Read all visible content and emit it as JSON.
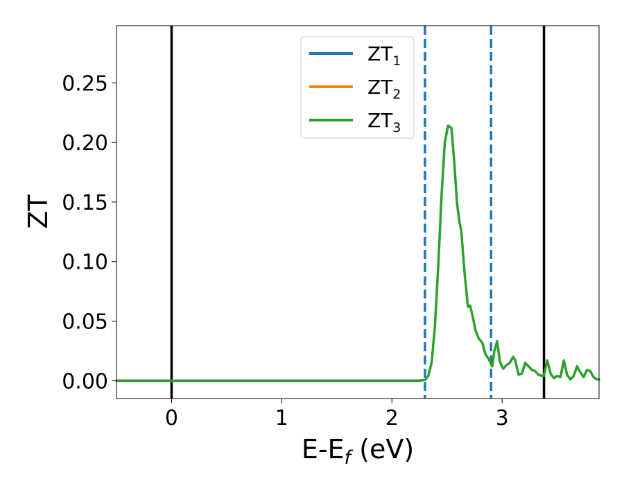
{
  "chart_data": {
    "type": "line",
    "title": "",
    "xlabel": {
      "base": "E-E",
      "sub": "f",
      "suffix": " (eV)"
    },
    "ylabel": "ZT",
    "xlim": [
      -0.5,
      3.88
    ],
    "ylim": [
      -0.015,
      0.298
    ],
    "xticks": [
      0,
      1,
      2,
      3
    ],
    "xtick_labels": [
      "0",
      "1",
      "2",
      "3"
    ],
    "yticks": [
      0.0,
      0.05,
      0.1,
      0.15,
      0.2,
      0.25
    ],
    "ytick_labels": [
      "0.00",
      "0.05",
      "0.10",
      "0.15",
      "0.20",
      "0.25"
    ],
    "grid": false,
    "legend_position": "top-center",
    "legend": [
      {
        "base": "ZT",
        "sub": "1",
        "color": "#1f77b4"
      },
      {
        "base": "ZT",
        "sub": "2",
        "color": "#ff7f0e"
      },
      {
        "base": "ZT",
        "sub": "3",
        "color": "#2ca02c"
      }
    ],
    "vlines": [
      {
        "x": 0.0,
        "style": "solid",
        "color": "#000000"
      },
      {
        "x": 3.38,
        "style": "solid",
        "color": "#000000"
      },
      {
        "x": 2.3,
        "style": "dashed",
        "color": "#1f77b4"
      },
      {
        "x": 2.9,
        "style": "dashed",
        "color": "#1f77b4"
      }
    ],
    "series": [
      {
        "color": "#2ca02c",
        "x": [
          -0.5,
          0.0,
          1.0,
          2.0,
          2.25,
          2.3,
          2.33,
          2.36,
          2.39,
          2.42,
          2.45,
          2.48,
          2.51,
          2.54,
          2.565,
          2.59,
          2.61,
          2.63,
          2.66,
          2.69,
          2.71,
          2.73,
          2.76,
          2.79,
          2.82,
          2.85,
          2.88,
          2.91,
          2.93,
          2.955,
          2.98,
          3.01,
          3.04,
          3.07,
          3.1,
          3.12,
          3.15,
          3.18,
          3.21,
          3.24,
          3.27,
          3.3,
          3.33,
          3.36,
          3.38,
          3.41,
          3.44,
          3.47,
          3.5,
          3.53,
          3.56,
          3.59,
          3.62,
          3.65,
          3.68,
          3.71,
          3.74,
          3.77,
          3.8,
          3.83,
          3.86,
          3.88
        ],
        "y": [
          0.0,
          0.0,
          0.0,
          0.0,
          0.0,
          0.0005,
          0.004,
          0.015,
          0.045,
          0.095,
          0.155,
          0.2,
          0.214,
          0.212,
          0.185,
          0.15,
          0.135,
          0.125,
          0.09,
          0.062,
          0.063,
          0.055,
          0.042,
          0.035,
          0.032,
          0.022,
          0.018,
          0.012,
          0.025,
          0.033,
          0.016,
          0.01,
          0.013,
          0.015,
          0.02,
          0.017,
          0.005,
          0.006,
          0.015,
          0.012,
          0.009,
          0.008,
          0.005,
          0.004,
          0.004,
          0.017,
          0.006,
          0.002,
          0.004,
          0.003,
          0.017,
          0.005,
          0.001,
          0.004,
          0.012,
          0.007,
          0.003,
          0.009,
          0.008,
          0.003,
          0.001,
          0.001
        ]
      }
    ]
  }
}
